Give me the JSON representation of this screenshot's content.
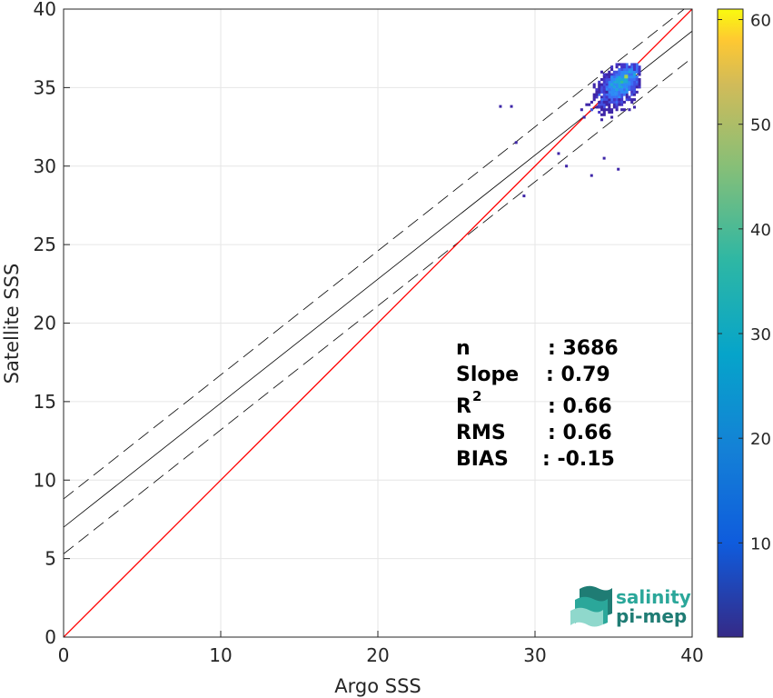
{
  "chart_data": {
    "type": "scatter",
    "subtype": "density-scatter with regression lines",
    "xlabel": "Argo SSS",
    "ylabel": "Satellite SSS",
    "xlim": [
      0,
      40
    ],
    "ylim": [
      0,
      40
    ],
    "x_ticks": [
      "0",
      "10",
      "20",
      "30",
      "40"
    ],
    "y_ticks": [
      "0",
      "5",
      "10",
      "15",
      "20",
      "25",
      "30",
      "35",
      "40"
    ],
    "grid": true,
    "lines": {
      "identity": {
        "slope": 1,
        "intercept": 0,
        "color": "#ff0000"
      },
      "fit": {
        "slope": 0.79,
        "intercept": 7.0,
        "color": "#000000"
      },
      "fit_upper": {
        "slope": 0.79,
        "intercept": 8.8,
        "color": "#000000",
        "dash": true
      },
      "fit_lower": {
        "slope": 0.79,
        "intercept": 5.3,
        "color": "#000000",
        "dash": true
      }
    },
    "density_cluster": {
      "x_range": [
        32.5,
        36.6
      ],
      "y_range": [
        32.5,
        36.5
      ],
      "peak": [
        35.8,
        35.7
      ]
    },
    "outliers": [
      {
        "x": 27.8,
        "y": 33.8
      },
      {
        "x": 28.5,
        "y": 33.8
      },
      {
        "x": 29.3,
        "y": 28.1
      },
      {
        "x": 28.8,
        "y": 31.5
      },
      {
        "x": 31.5,
        "y": 30.8
      },
      {
        "x": 32.0,
        "y": 30.0
      },
      {
        "x": 35.3,
        "y": 29.8
      },
      {
        "x": 34.4,
        "y": 30.5
      },
      {
        "x": 33.6,
        "y": 29.4
      }
    ],
    "colorbar": {
      "min": 1,
      "max": 61,
      "ticks": [
        "10",
        "20",
        "30",
        "40",
        "50",
        "60"
      ],
      "colormap": "parula"
    },
    "stats": [
      {
        "label": "n",
        "value": ": 3686"
      },
      {
        "label": "Slope",
        "value": ": 0.79"
      },
      {
        "label": "R",
        "sup": "2",
        "value": ": 0.66"
      },
      {
        "label": "RMS",
        "value": ": 0.66"
      },
      {
        "label": "BIAS",
        "value": ": -0.15"
      }
    ]
  },
  "logo": {
    "line1": "salinity",
    "line2": "pi-mep"
  }
}
